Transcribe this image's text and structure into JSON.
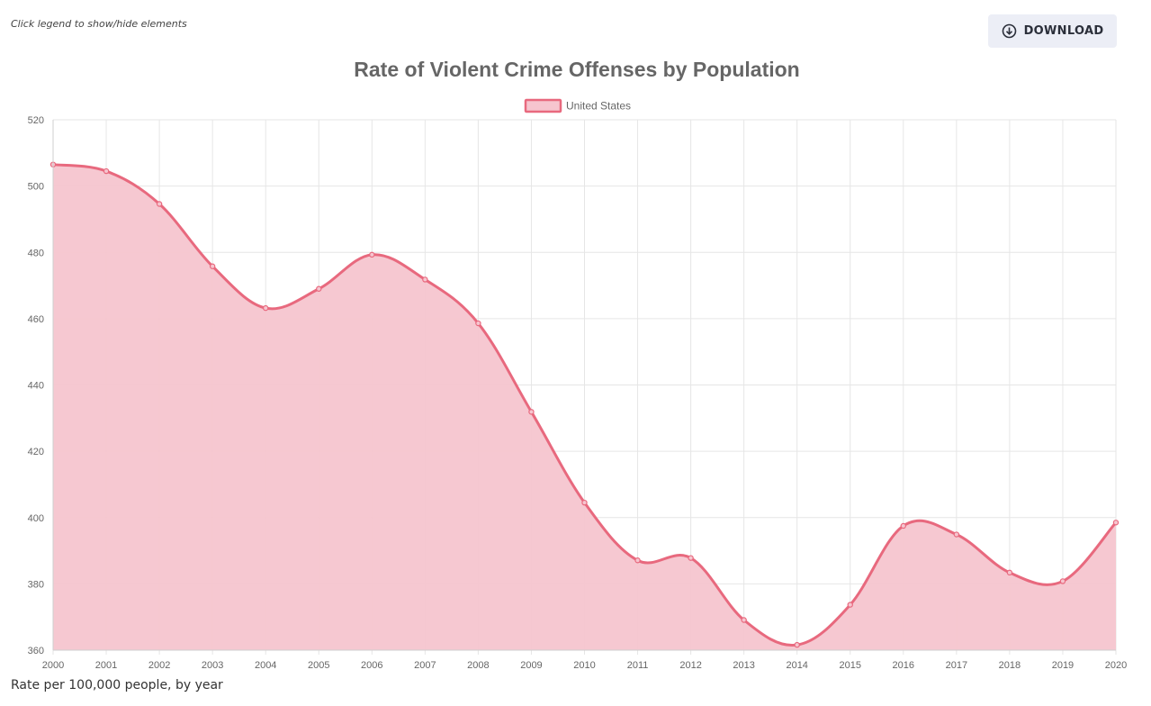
{
  "hint": "Click legend to show/hide elements",
  "download": {
    "label": "DOWNLOAD",
    "icon": "download-icon"
  },
  "caption": "Rate per 100,000 people, by year",
  "colors": {
    "line": "#e8697e",
    "fill": "#f6c5cf",
    "grid": "#e6e6e6",
    "title": "#666666",
    "tick": "#666666"
  },
  "chart_data": {
    "type": "area",
    "title": "Rate of Violent Crime Offenses by Population",
    "xlabel": "",
    "ylabel": "",
    "x": [
      "2000",
      "2001",
      "2002",
      "2003",
      "2004",
      "2005",
      "2006",
      "2007",
      "2008",
      "2009",
      "2010",
      "2011",
      "2012",
      "2013",
      "2014",
      "2015",
      "2016",
      "2017",
      "2018",
      "2019",
      "2020"
    ],
    "series": [
      {
        "name": "United States",
        "values": [
          506.5,
          504.5,
          494.6,
          475.8,
          463.2,
          469.0,
          479.3,
          471.8,
          458.6,
          431.9,
          404.5,
          387.1,
          387.8,
          369.1,
          361.6,
          373.7,
          397.5,
          394.9,
          383.4,
          380.8,
          398.5
        ]
      }
    ],
    "ylim": [
      360,
      520
    ],
    "yticks": [
      360,
      380,
      400,
      420,
      440,
      460,
      480,
      500,
      520
    ],
    "legend": "top-center",
    "grid": true
  }
}
